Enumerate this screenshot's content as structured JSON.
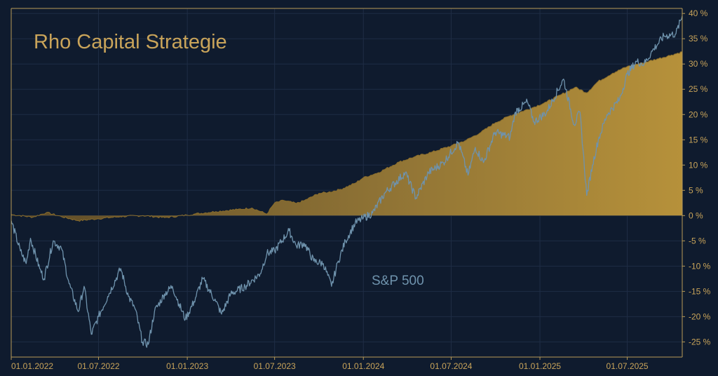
{
  "chart_data": {
    "type": "area",
    "title": "Rho Capital Strategie",
    "xlabel": "",
    "ylabel": "",
    "x_range": [
      "2022-01-01",
      "2025-10-23"
    ],
    "ylim": [
      -28,
      41
    ],
    "grid": true,
    "y_axis_position": "right",
    "y_ticks": [
      {
        "value": 40,
        "label": "40 %"
      },
      {
        "value": 35,
        "label": "35 %"
      },
      {
        "value": 30,
        "label": "30 %"
      },
      {
        "value": 25,
        "label": "25 %"
      },
      {
        "value": 20,
        "label": "20 %"
      },
      {
        "value": 15,
        "label": "15 %"
      },
      {
        "value": 10,
        "label": "10 %"
      },
      {
        "value": 5,
        "label": "5 %"
      },
      {
        "value": 0,
        "label": "0 %"
      },
      {
        "value": -5,
        "label": "-5 %"
      },
      {
        "value": -10,
        "label": "-10 %"
      },
      {
        "value": -15,
        "label": "-15 %"
      },
      {
        "value": -20,
        "label": "-20 %"
      },
      {
        "value": -25,
        "label": "-25 %"
      }
    ],
    "x_ticks": [
      {
        "date": "2022-01-01",
        "label": "01.01.2022"
      },
      {
        "date": "2022-07-01",
        "label": "01.07.2022"
      },
      {
        "date": "2023-01-01",
        "label": "01.01.2023"
      },
      {
        "date": "2023-07-01",
        "label": "01.07.2023"
      },
      {
        "date": "2024-01-01",
        "label": "01.01.2024"
      },
      {
        "date": "2024-07-01",
        "label": "01.07.2024"
      },
      {
        "date": "2025-01-01",
        "label": "01.01.2025"
      },
      {
        "date": "2025-07-01",
        "label": "01.07.2025"
      }
    ],
    "series": [
      {
        "name": "Rho Capital Strategie",
        "type": "area",
        "color": "#b6913a",
        "points": [
          [
            "2022-01-01",
            0.2
          ],
          [
            "2022-02-15",
            -0.3
          ],
          [
            "2022-03-15",
            0.6
          ],
          [
            "2022-04-15",
            -0.2
          ],
          [
            "2022-05-20",
            -1.0
          ],
          [
            "2022-07-01",
            -0.6
          ],
          [
            "2022-08-15",
            -0.2
          ],
          [
            "2022-10-01",
            0.0
          ],
          [
            "2022-11-15",
            -0.4
          ],
          [
            "2022-12-31",
            0.1
          ],
          [
            "2023-01-15",
            0.3
          ],
          [
            "2023-03-01",
            0.8
          ],
          [
            "2023-04-15",
            1.2
          ],
          [
            "2023-05-15",
            1.5
          ],
          [
            "2023-06-15",
            0.3
          ],
          [
            "2023-07-01",
            2.5
          ],
          [
            "2023-07-20",
            3.0
          ],
          [
            "2023-08-15",
            2.4
          ],
          [
            "2023-09-01",
            3.0
          ],
          [
            "2023-10-01",
            4.4
          ],
          [
            "2023-10-20",
            4.6
          ],
          [
            "2023-11-15",
            5.2
          ],
          [
            "2023-12-15",
            6.4
          ],
          [
            "2024-01-01",
            7.5
          ],
          [
            "2024-02-01",
            8.5
          ],
          [
            "2024-03-15",
            10.6
          ],
          [
            "2024-04-15",
            11.6
          ],
          [
            "2024-05-20",
            12.5
          ],
          [
            "2024-07-01",
            13.8
          ],
          [
            "2024-08-01",
            14.9
          ],
          [
            "2024-09-01",
            16.5
          ],
          [
            "2024-10-01",
            18.4
          ],
          [
            "2024-11-01",
            19.8
          ],
          [
            "2024-12-15",
            21.3
          ],
          [
            "2025-01-15",
            22.5
          ],
          [
            "2025-02-15",
            24.0
          ],
          [
            "2025-03-15",
            25.4
          ],
          [
            "2025-04-08",
            24.3
          ],
          [
            "2025-05-01",
            26.5
          ],
          [
            "2025-06-01",
            28.2
          ],
          [
            "2025-07-01",
            29.5
          ],
          [
            "2025-08-01",
            30.2
          ],
          [
            "2025-09-01",
            31.0
          ],
          [
            "2025-10-01",
            31.8
          ],
          [
            "2025-10-23",
            32.4
          ]
        ]
      },
      {
        "name": "S&P 500",
        "type": "line",
        "color": "#6f93ad",
        "points": [
          [
            "2022-01-01",
            -1.0
          ],
          [
            "2022-01-20",
            -7.0
          ],
          [
            "2022-02-01",
            -9.5
          ],
          [
            "2022-02-10",
            -4.5
          ],
          [
            "2022-03-01",
            -10.5
          ],
          [
            "2022-03-10",
            -12.5
          ],
          [
            "2022-03-29",
            -5.0
          ],
          [
            "2022-04-15",
            -6.5
          ],
          [
            "2022-05-01",
            -13.5
          ],
          [
            "2022-05-20",
            -19.0
          ],
          [
            "2022-06-01",
            -14.0
          ],
          [
            "2022-06-16",
            -23.5
          ],
          [
            "2022-07-01",
            -20.0
          ],
          [
            "2022-07-20",
            -16.0
          ],
          [
            "2022-08-16",
            -10.5
          ],
          [
            "2022-09-01",
            -16.0
          ],
          [
            "2022-09-15",
            -18.5
          ],
          [
            "2022-09-30",
            -25.0
          ],
          [
            "2022-10-12",
            -25.5
          ],
          [
            "2022-10-25",
            -19.0
          ],
          [
            "2022-11-15",
            -15.5
          ],
          [
            "2022-12-01",
            -14.0
          ],
          [
            "2022-12-15",
            -17.5
          ],
          [
            "2022-12-28",
            -20.5
          ],
          [
            "2023-01-15",
            -17.0
          ],
          [
            "2023-02-02",
            -12.5
          ],
          [
            "2023-03-01",
            -17.0
          ],
          [
            "2023-03-13",
            -19.5
          ],
          [
            "2023-04-01",
            -15.5
          ],
          [
            "2023-05-01",
            -14.0
          ],
          [
            "2023-06-01",
            -11.5
          ],
          [
            "2023-06-15",
            -7.5
          ],
          [
            "2023-07-01",
            -7.0
          ],
          [
            "2023-07-31",
            -3.0
          ],
          [
            "2023-08-15",
            -6.0
          ],
          [
            "2023-09-01",
            -5.5
          ],
          [
            "2023-09-20",
            -9.0
          ],
          [
            "2023-10-10",
            -9.5
          ],
          [
            "2023-10-27",
            -14.0
          ],
          [
            "2023-11-10",
            -9.0
          ],
          [
            "2023-11-25",
            -5.0
          ],
          [
            "2023-12-15",
            -1.5
          ],
          [
            "2024-01-01",
            -0.5
          ],
          [
            "2024-01-20",
            0.5
          ],
          [
            "2024-02-15",
            4.5
          ],
          [
            "2024-03-28",
            8.5
          ],
          [
            "2024-04-19",
            3.5
          ],
          [
            "2024-05-15",
            8.5
          ],
          [
            "2024-06-15",
            10.5
          ],
          [
            "2024-07-16",
            14.5
          ],
          [
            "2024-08-05",
            8.0
          ],
          [
            "2024-08-20",
            13.5
          ],
          [
            "2024-09-06",
            10.5
          ],
          [
            "2024-09-30",
            16.5
          ],
          [
            "2024-10-31",
            15.5
          ],
          [
            "2024-11-11",
            20.5
          ],
          [
            "2024-12-06",
            22.5
          ],
          [
            "2024-12-20",
            18.5
          ],
          [
            "2025-01-15",
            20.5
          ],
          [
            "2025-02-19",
            27.0
          ],
          [
            "2025-03-13",
            18.0
          ],
          [
            "2025-03-25",
            20.5
          ],
          [
            "2025-04-08",
            4.0
          ],
          [
            "2025-04-20",
            10.0
          ],
          [
            "2025-05-02",
            15.0
          ],
          [
            "2025-05-20",
            20.0
          ],
          [
            "2025-06-15",
            23.0
          ],
          [
            "2025-07-01",
            28.0
          ],
          [
            "2025-07-20",
            30.5
          ],
          [
            "2025-08-05",
            30.0
          ],
          [
            "2025-08-25",
            33.0
          ],
          [
            "2025-09-15",
            35.5
          ],
          [
            "2025-10-10",
            36.0
          ],
          [
            "2025-10-23",
            39.5
          ]
        ]
      }
    ],
    "annotations": [
      {
        "text": "S&P 500",
        "series": "S&P 500"
      }
    ]
  },
  "colors": {
    "background": "#0f1b2e",
    "grid": "#1f2d45",
    "axis": "#b89b58",
    "label": "#c9a45a",
    "strategy": "#b6913a",
    "benchmark": "#6f93ad"
  }
}
